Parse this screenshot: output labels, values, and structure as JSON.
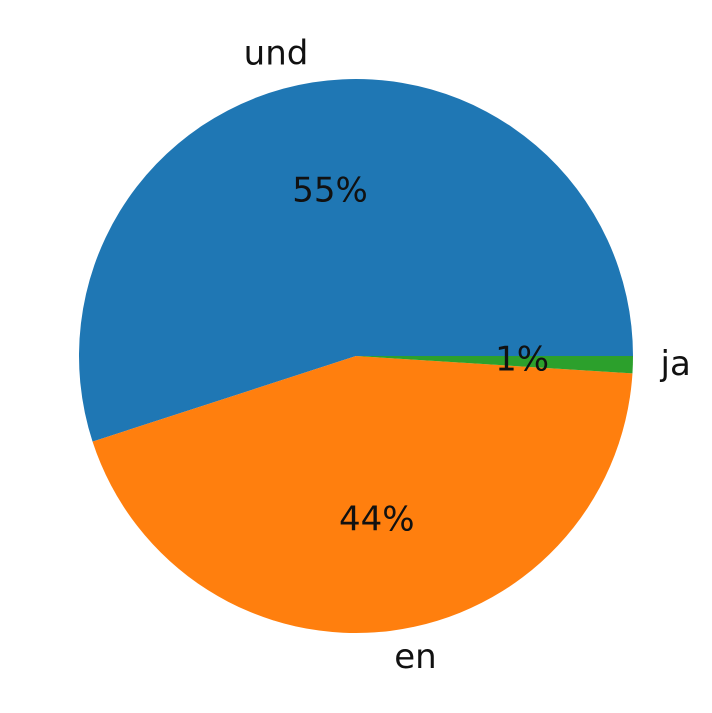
{
  "chart_data": {
    "type": "pie",
    "title": "",
    "categories": [
      "und",
      "en",
      "ja"
    ],
    "values": [
      55,
      44,
      1
    ],
    "percent_labels": [
      "55%",
      "44%",
      "1%"
    ],
    "colors": [
      "#1f77b4",
      "#ff7f0e",
      "#2ca02c"
    ],
    "start_angle_deg": 0,
    "direction": "counterclockwise",
    "legend": "none"
  }
}
